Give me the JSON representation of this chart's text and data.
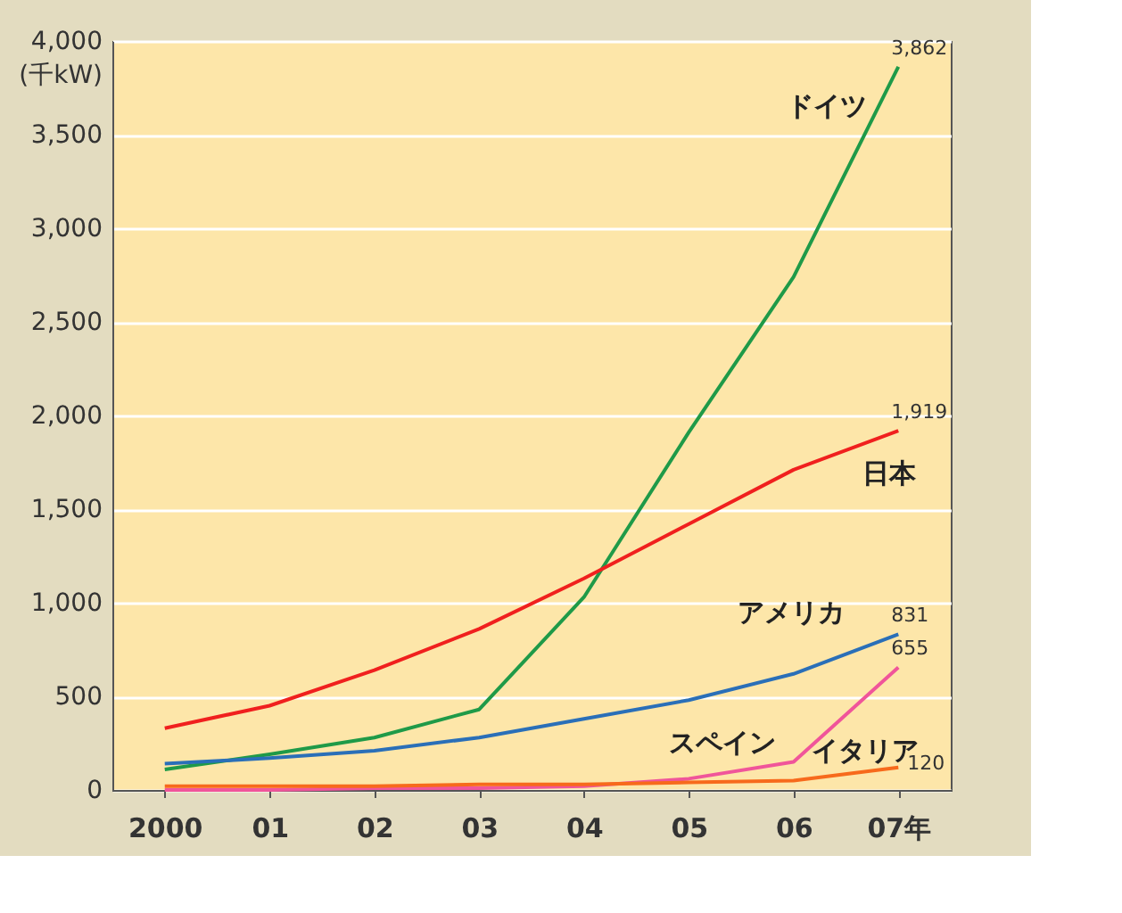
{
  "chart_data": {
    "type": "line",
    "ylabel": "(千kW)",
    "categories": [
      "2000",
      "01",
      "02",
      "03",
      "04",
      "05",
      "06",
      "07年"
    ],
    "ylim": [
      0,
      4000
    ],
    "yticks": [
      {
        "value": 0,
        "label": "0"
      },
      {
        "value": 500,
        "label": "500"
      },
      {
        "value": 1000,
        "label": "1,000"
      },
      {
        "value": 1500,
        "label": "1,500"
      },
      {
        "value": 2000,
        "label": "2,000"
      },
      {
        "value": 2500,
        "label": "2,500"
      },
      {
        "value": 3000,
        "label": "3,000"
      },
      {
        "value": 3500,
        "label": "3,500"
      },
      {
        "value": 4000,
        "label": "4,000"
      }
    ],
    "grid": "y",
    "marker": "none",
    "line_style": "solid",
    "series": [
      {
        "name": "ドイツ",
        "color": "#1f9a48",
        "values": [
          110,
          190,
          280,
          430,
          1030,
          1910,
          2740,
          3862
        ],
        "value_labels": [
          null,
          null,
          null,
          null,
          null,
          null,
          null,
          "3,862"
        ]
      },
      {
        "name": "日本",
        "color": "#f0201e",
        "values": [
          330,
          450,
          640,
          860,
          1130,
          1420,
          1710,
          1919
        ],
        "value_labels": [
          null,
          null,
          null,
          null,
          null,
          null,
          null,
          "1,919"
        ]
      },
      {
        "name": "アメリカ",
        "color": "#2a6fb8",
        "values": [
          140,
          170,
          210,
          280,
          380,
          480,
          620,
          831
        ],
        "value_labels": [
          null,
          null,
          null,
          null,
          null,
          null,
          null,
          "831"
        ]
      },
      {
        "name": "スペイン",
        "color": "#f0559a",
        "values": [
          0,
          0,
          10,
          10,
          20,
          60,
          150,
          655
        ],
        "value_labels": [
          null,
          null,
          null,
          null,
          null,
          null,
          null,
          "655"
        ]
      },
      {
        "name": "イタリア",
        "color": "#f76a1c",
        "values": [
          20,
          20,
          20,
          30,
          30,
          40,
          50,
          120
        ],
        "value_labels": [
          null,
          null,
          null,
          null,
          null,
          null,
          null,
          "120"
        ]
      }
    ]
  }
}
